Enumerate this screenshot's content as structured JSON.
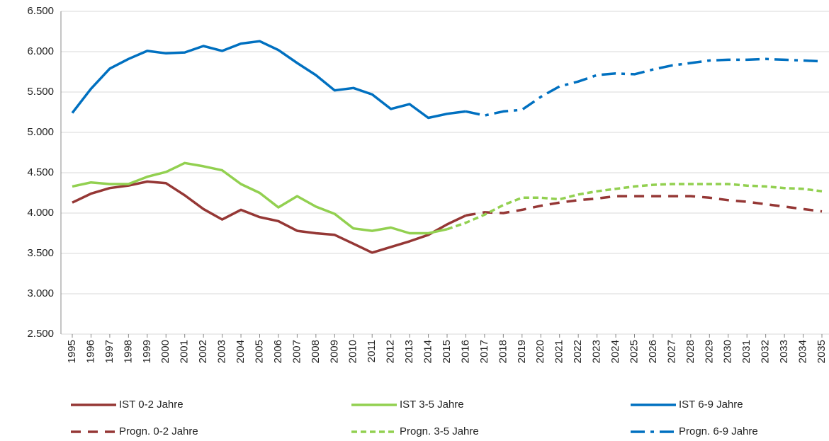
{
  "chart_data": {
    "type": "line",
    "categories": [
      "1995",
      "1996",
      "1997",
      "1998",
      "1999",
      "2000",
      "2001",
      "2002",
      "2003",
      "2004",
      "2005",
      "2006",
      "2007",
      "2008",
      "2009",
      "2010",
      "2011",
      "2012",
      "2013",
      "2014",
      "2015",
      "2016",
      "2017",
      "2018",
      "2019",
      "2020",
      "2021",
      "2022",
      "2023",
      "2024",
      "2025",
      "2026",
      "2027",
      "2028",
      "2029",
      "2030",
      "2031",
      "2032",
      "2033",
      "2034",
      "2035"
    ],
    "ylim": [
      2500,
      6500
    ],
    "yticks": [
      {
        "value": 2500,
        "label": "2.500"
      },
      {
        "value": 3000,
        "label": "3.000"
      },
      {
        "value": 3500,
        "label": "3.500"
      },
      {
        "value": 4000,
        "label": "4.000"
      },
      {
        "value": 4500,
        "label": "4.500"
      },
      {
        "value": 5000,
        "label": "5.000"
      },
      {
        "value": 5500,
        "label": "5.500"
      },
      {
        "value": 6000,
        "label": "6.000"
      },
      {
        "value": 6500,
        "label": "6.500"
      }
    ],
    "grid": true,
    "legend": "bottom",
    "series": [
      {
        "name": "IST 0-2 Jahre",
        "color": "#953735",
        "dashed": false,
        "values": [
          4130,
          4240,
          4310,
          4340,
          4390,
          4370,
          4220,
          4050,
          3920,
          4040,
          3950,
          3900,
          3780,
          3750,
          3730,
          3620,
          3510,
          3580,
          3650,
          3730,
          3860,
          3970,
          null,
          null,
          null,
          null,
          null,
          null,
          null,
          null,
          null,
          null,
          null,
          null,
          null,
          null,
          null,
          null,
          null,
          null,
          null
        ]
      },
      {
        "name": "IST 3-5 Jahre",
        "color": "#92d050",
        "dashed": false,
        "values": [
          4330,
          4380,
          4360,
          4360,
          4450,
          4510,
          4620,
          4580,
          4530,
          4360,
          4250,
          4070,
          4210,
          4080,
          3990,
          3810,
          3780,
          3820,
          3750,
          3750,
          3800,
          null,
          null,
          null,
          null,
          null,
          null,
          null,
          null,
          null,
          null,
          null,
          null,
          null,
          null,
          null,
          null,
          null,
          null,
          null,
          null
        ]
      },
      {
        "name": "IST 6-9 Jahre",
        "color": "#0070c0",
        "dashed": false,
        "values": [
          5240,
          5540,
          5790,
          5910,
          6010,
          5980,
          5990,
          6070,
          6010,
          6100,
          6130,
          6020,
          5860,
          5710,
          5520,
          5550,
          5470,
          5290,
          5350,
          5180,
          5230,
          5260,
          null,
          null,
          null,
          null,
          null,
          null,
          null,
          null,
          null,
          null,
          null,
          null,
          null,
          null,
          null,
          null,
          null,
          null,
          null
        ]
      },
      {
        "name": "Progn. 0-2 Jahre",
        "color": "#953735",
        "dashed": true,
        "values": [
          null,
          null,
          null,
          null,
          null,
          null,
          null,
          null,
          null,
          null,
          null,
          null,
          null,
          null,
          null,
          null,
          null,
          null,
          null,
          null,
          null,
          3970,
          4010,
          4000,
          4040,
          4090,
          4130,
          4160,
          4180,
          4210,
          4210,
          4210,
          4210,
          4210,
          4190,
          4160,
          4140,
          4110,
          4080,
          4050,
          4020
        ]
      },
      {
        "name": "Progn. 3-5 Jahre",
        "color": "#92d050",
        "dashed": true,
        "values": [
          null,
          null,
          null,
          null,
          null,
          null,
          null,
          null,
          null,
          null,
          null,
          null,
          null,
          null,
          null,
          null,
          null,
          null,
          null,
          null,
          3800,
          3880,
          3980,
          4100,
          4190,
          4190,
          4170,
          4230,
          4270,
          4300,
          4330,
          4350,
          4360,
          4360,
          4360,
          4360,
          4340,
          4330,
          4310,
          4300,
          4270
        ]
      },
      {
        "name": "Progn. 6-9 Jahre",
        "color": "#0070c0",
        "dashed": true,
        "values": [
          null,
          null,
          null,
          null,
          null,
          null,
          null,
          null,
          null,
          null,
          null,
          null,
          null,
          null,
          null,
          null,
          null,
          null,
          null,
          null,
          null,
          5260,
          5210,
          5260,
          5280,
          5440,
          5570,
          5630,
          5710,
          5730,
          5720,
          5780,
          5830,
          5860,
          5890,
          5900,
          5900,
          5910,
          5900,
          5890,
          5880
        ]
      }
    ]
  }
}
